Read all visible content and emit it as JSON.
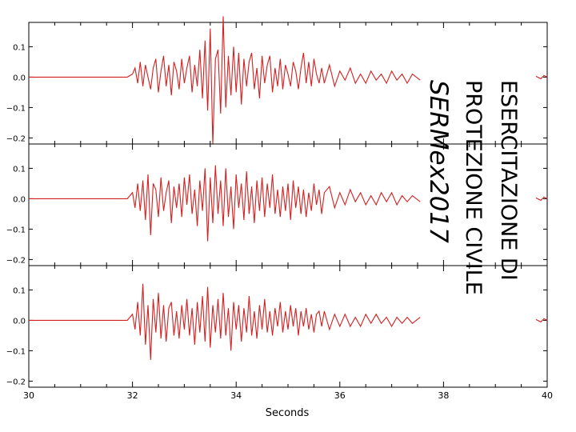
{
  "colors": {
    "trace": "#d42020",
    "axis": "#000000",
    "background": "#ffffff"
  },
  "overlay": {
    "line1": "ESERCITAZIONE DI",
    "line2": "PROTEZIONE CIVILE",
    "line3": "SERMex2017"
  },
  "chart_data": {
    "type": "line",
    "title": "",
    "xlabel": "Seconds",
    "x_range": [
      30,
      40
    ],
    "x_ticks": [
      30,
      32,
      34,
      36,
      38,
      40
    ],
    "x_tick_labels": [
      "30",
      "32",
      "34",
      "36",
      "38",
      "40"
    ],
    "y_range": [
      -0.22,
      0.18
    ],
    "y_ticks": [
      0.1,
      0.0,
      -0.1,
      -0.2
    ],
    "y_tick_labels": [
      "0.1",
      "0.0",
      "−0.1",
      "−0.2"
    ],
    "grid": false,
    "series": [
      {
        "panel": 1,
        "x": [
          30,
          31,
          31.9,
          32.0,
          32.05,
          32.1,
          32.15,
          32.2,
          32.25,
          32.3,
          32.35,
          32.4,
          32.45,
          32.5,
          32.55,
          32.6,
          32.65,
          32.7,
          32.75,
          32.8,
          32.85,
          32.9,
          32.95,
          33.0,
          33.05,
          33.1,
          33.15,
          33.2,
          33.25,
          33.3,
          33.35,
          33.4,
          33.45,
          33.5,
          33.55,
          33.6,
          33.65,
          33.7,
          33.75,
          33.8,
          33.85,
          33.9,
          33.95,
          34.0,
          34.05,
          34.1,
          34.15,
          34.2,
          34.25,
          34.3,
          34.35,
          34.4,
          34.45,
          34.5,
          34.55,
          34.6,
          34.65,
          34.7,
          34.75,
          34.8,
          34.85,
          34.9,
          34.95,
          35.0,
          35.05,
          35.1,
          35.15,
          35.2,
          35.25,
          35.3,
          35.35,
          35.4,
          35.45,
          35.5,
          35.55,
          35.6,
          35.65,
          35.7,
          35.8,
          35.9,
          36.0,
          36.1,
          36.2,
          36.3,
          36.4,
          36.5,
          36.6,
          36.7,
          36.8,
          36.9,
          37.0,
          37.1,
          37.2,
          37.3,
          37.4,
          37.55
        ],
        "y": [
          0,
          0,
          0,
          0.01,
          0.03,
          -0.02,
          0.05,
          -0.03,
          0.04,
          0.0,
          -0.04,
          0.03,
          0.06,
          -0.05,
          0.02,
          0.07,
          -0.03,
          0.04,
          -0.06,
          0.05,
          0.02,
          -0.04,
          0.06,
          -0.02,
          0.03,
          0.07,
          -0.05,
          0.04,
          -0.03,
          0.09,
          -0.07,
          0.12,
          -0.11,
          0.16,
          -0.22,
          0.06,
          0.09,
          -0.12,
          0.2,
          -0.1,
          0.07,
          -0.06,
          0.1,
          -0.05,
          0.08,
          -0.09,
          0.06,
          -0.03,
          0.05,
          0.08,
          -0.04,
          0.03,
          -0.07,
          0.07,
          -0.02,
          0.04,
          0.07,
          -0.05,
          0.03,
          -0.03,
          0.06,
          -0.04,
          0.04,
          0.01,
          -0.03,
          0.05,
          0.02,
          -0.04,
          0.03,
          0.08,
          -0.02,
          0.05,
          -0.03,
          0.06,
          0.01,
          -0.02,
          0.03,
          -0.02,
          0.04,
          -0.03,
          0.02,
          -0.01,
          0.03,
          -0.02,
          0.01,
          -0.02,
          0.02,
          -0.01,
          0.01,
          -0.02,
          0.02,
          -0.01,
          0.01,
          -0.02,
          0.01,
          -0.01
        ]
      },
      {
        "panel": 2,
        "x": [
          30,
          31,
          31.9,
          32.0,
          32.05,
          32.1,
          32.15,
          32.2,
          32.25,
          32.3,
          32.35,
          32.4,
          32.45,
          32.5,
          32.55,
          32.6,
          32.65,
          32.7,
          32.75,
          32.8,
          32.85,
          32.9,
          32.95,
          33.0,
          33.05,
          33.1,
          33.15,
          33.2,
          33.25,
          33.3,
          33.35,
          33.4,
          33.45,
          33.5,
          33.55,
          33.6,
          33.65,
          33.7,
          33.75,
          33.8,
          33.85,
          33.9,
          33.95,
          34.0,
          34.05,
          34.1,
          34.15,
          34.2,
          34.25,
          34.3,
          34.35,
          34.4,
          34.45,
          34.5,
          34.55,
          34.6,
          34.65,
          34.7,
          34.75,
          34.8,
          34.85,
          34.9,
          34.95,
          35.0,
          35.05,
          35.1,
          35.15,
          35.2,
          35.25,
          35.3,
          35.35,
          35.4,
          35.45,
          35.5,
          35.55,
          35.6,
          35.65,
          35.7,
          35.8,
          35.9,
          36.0,
          36.1,
          36.2,
          36.3,
          36.4,
          36.5,
          36.6,
          36.7,
          36.8,
          36.9,
          37.0,
          37.1,
          37.2,
          37.3,
          37.4,
          37.55
        ],
        "y": [
          0,
          0,
          0,
          0.02,
          -0.03,
          0.05,
          -0.04,
          0.06,
          -0.07,
          0.08,
          -0.12,
          0.05,
          0.03,
          -0.06,
          0.07,
          -0.04,
          0.02,
          0.06,
          -0.08,
          0.04,
          -0.03,
          0.05,
          -0.06,
          0.07,
          -0.02,
          0.08,
          -0.05,
          0.03,
          -0.09,
          0.06,
          -0.04,
          0.1,
          -0.14,
          0.07,
          -0.08,
          0.11,
          -0.05,
          0.06,
          -0.09,
          0.1,
          -0.06,
          0.04,
          -0.1,
          0.08,
          -0.03,
          0.05,
          -0.07,
          0.09,
          -0.05,
          0.04,
          -0.08,
          0.06,
          -0.04,
          0.07,
          -0.06,
          0.05,
          -0.03,
          0.08,
          -0.05,
          0.03,
          -0.06,
          0.04,
          -0.04,
          0.05,
          -0.07,
          0.06,
          -0.03,
          0.04,
          -0.05,
          0.03,
          -0.06,
          0.02,
          -0.04,
          0.05,
          -0.02,
          0.03,
          -0.05,
          0.02,
          0.04,
          -0.03,
          0.02,
          -0.02,
          0.03,
          -0.01,
          0.02,
          -0.02,
          0.01,
          -0.02,
          0.02,
          -0.01,
          0.02,
          -0.02,
          0.01,
          -0.01,
          0.01,
          -0.01
        ]
      },
      {
        "panel": 3,
        "x": [
          30,
          31,
          31.9,
          32.0,
          32.05,
          32.1,
          32.15,
          32.2,
          32.25,
          32.3,
          32.35,
          32.4,
          32.45,
          32.5,
          32.55,
          32.6,
          32.65,
          32.7,
          32.75,
          32.8,
          32.85,
          32.9,
          32.95,
          33.0,
          33.05,
          33.1,
          33.15,
          33.2,
          33.25,
          33.3,
          33.35,
          33.4,
          33.45,
          33.5,
          33.55,
          33.6,
          33.65,
          33.7,
          33.75,
          33.8,
          33.85,
          33.9,
          33.95,
          34.0,
          34.05,
          34.1,
          34.15,
          34.2,
          34.25,
          34.3,
          34.35,
          34.4,
          34.45,
          34.5,
          34.55,
          34.6,
          34.65,
          34.7,
          34.75,
          34.8,
          34.85,
          34.9,
          34.95,
          35.0,
          35.05,
          35.1,
          35.15,
          35.2,
          35.25,
          35.3,
          35.35,
          35.4,
          35.45,
          35.5,
          35.55,
          35.6,
          35.65,
          35.7,
          35.8,
          35.9,
          36.0,
          36.1,
          36.2,
          36.3,
          36.4,
          36.5,
          36.6,
          36.7,
          36.8,
          36.9,
          37.0,
          37.1,
          37.2,
          37.3,
          37.4,
          37.55
        ],
        "y": [
          0,
          0,
          0,
          0.02,
          -0.03,
          0.06,
          -0.05,
          0.12,
          -0.08,
          0.05,
          -0.13,
          0.07,
          -0.04,
          0.09,
          -0.06,
          0.05,
          -0.07,
          0.04,
          0.06,
          -0.05,
          0.03,
          -0.06,
          0.05,
          -0.03,
          0.07,
          -0.05,
          0.04,
          -0.08,
          0.06,
          -0.04,
          0.08,
          -0.07,
          0.11,
          -0.09,
          0.05,
          -0.04,
          0.07,
          -0.06,
          0.09,
          -0.05,
          0.04,
          -0.1,
          0.06,
          -0.03,
          0.05,
          -0.07,
          0.04,
          -0.04,
          0.08,
          -0.05,
          0.03,
          -0.06,
          0.05,
          -0.03,
          0.07,
          -0.04,
          0.03,
          -0.05,
          0.04,
          -0.02,
          0.06,
          -0.04,
          0.03,
          -0.03,
          0.05,
          -0.02,
          0.04,
          -0.05,
          0.03,
          -0.02,
          0.04,
          -0.03,
          0.02,
          -0.04,
          0.02,
          0.03,
          -0.02,
          0.03,
          -0.03,
          0.02,
          -0.02,
          0.02,
          -0.02,
          0.01,
          -0.02,
          0.02,
          -0.01,
          0.02,
          -0.01,
          0.01,
          -0.02,
          0.01,
          -0.01,
          0.01,
          -0.01,
          0.01
        ]
      }
    ]
  }
}
